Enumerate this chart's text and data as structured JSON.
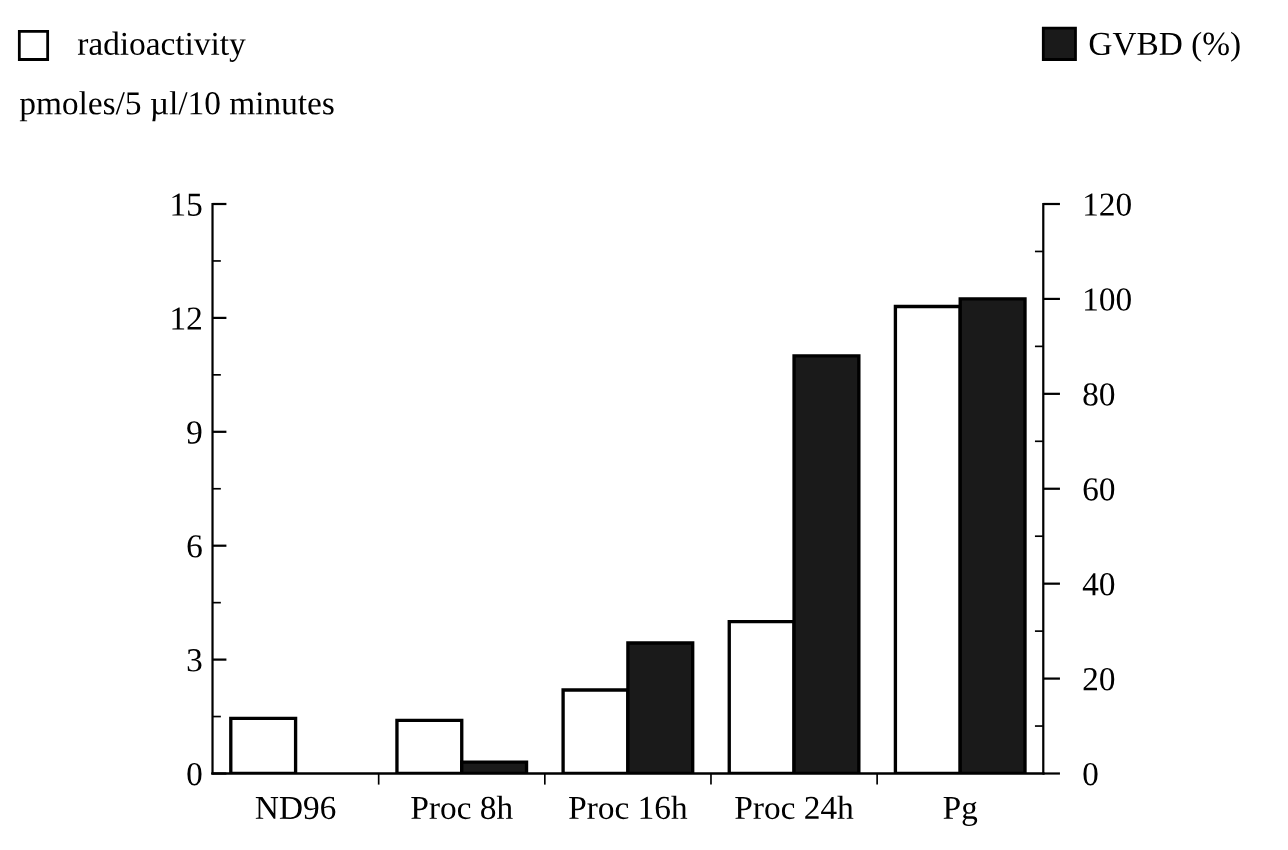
{
  "chart_data": {
    "type": "bar",
    "categories": [
      "ND96",
      "Proc 8h",
      "Proc 16h",
      "Proc 24h",
      "Pg"
    ],
    "ylabel": "pmoles/5 µl/10 minutes",
    "series": [
      {
        "name": "radioactivity",
        "color": "#ffffff",
        "values": [
          1.45,
          1.4,
          2.2,
          4.0,
          12.3
        ]
      },
      {
        "name": "GVBD (%)",
        "color": "#1a1a1a",
        "axis": "y2",
        "values": [
          0,
          2.4,
          27.5,
          88,
          100
        ]
      }
    ],
    "ylim": [
      0,
      15
    ],
    "yticks": [
      0,
      3,
      6,
      9,
      12,
      15
    ],
    "y2lim": [
      0,
      120
    ],
    "y2ticks": [
      0,
      20,
      40,
      60,
      80,
      100,
      120
    ],
    "legend": "top",
    "grid": false
  }
}
